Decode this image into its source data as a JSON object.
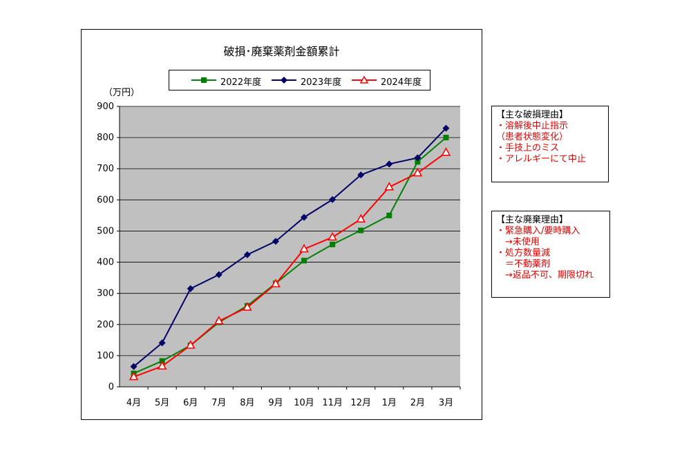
{
  "chart_data": {
    "type": "line",
    "title": "破損･廃棄薬剤金額累計",
    "unit_label": "（万円）",
    "xlabel": "",
    "ylabel": "",
    "ylim": [
      0,
      900
    ],
    "y_ticks": [
      "0",
      "100",
      "200",
      "300",
      "400",
      "500",
      "600",
      "700",
      "800",
      "900"
    ],
    "grid": true,
    "legend_position": "top",
    "categories": [
      "4月",
      "5月",
      "6月",
      "7月",
      "8月",
      "9月",
      "10月",
      "11月",
      "12月",
      "1月",
      "2月",
      "3月"
    ],
    "series": [
      {
        "name": "2022年度",
        "color": "#008000",
        "marker": "square",
        "values": [
          43,
          83,
          133,
          207,
          260,
          332,
          405,
          457,
          502,
          550,
          722,
          800
        ]
      },
      {
        "name": "2023年度",
        "color": "#000066",
        "marker": "diamond",
        "values": [
          65,
          141,
          315,
          360,
          424,
          467,
          544,
          601,
          680,
          715,
          735,
          830
        ]
      },
      {
        "name": "2024年度",
        "color": "#ff0000",
        "marker": "triangle",
        "values": [
          32,
          66,
          133,
          211,
          255,
          330,
          442,
          480,
          538,
          641,
          686,
          752
        ]
      }
    ]
  },
  "notes": {
    "damage": {
      "heading": "【主な破損理由】",
      "lines": [
        "・溶解後中止指示",
        "（患者状態変化）",
        "・手技上のミス",
        "・アレルギーにて中止"
      ]
    },
    "disposal": {
      "heading": "【主な廃棄理由】",
      "lines": [
        "・緊急購入/要時購入",
        "　→未使用",
        "・処方数量減",
        "　＝不動薬剤",
        "　→返品不可、期限切れ"
      ]
    }
  }
}
